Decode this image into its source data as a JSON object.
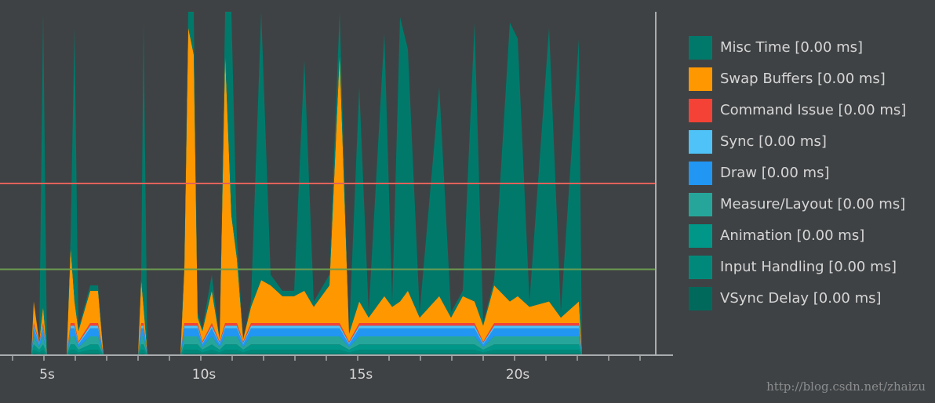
{
  "chart_data": {
    "type": "stacked_area",
    "watermark": "http://blog.csdn.net/zhaizu",
    "xlim": [
      3.6,
      25.05
    ],
    "ylim": [
      0,
      64
    ],
    "xticks": [
      {
        "value": 4,
        "label": null
      },
      {
        "value": 5,
        "label": "5s"
      },
      {
        "value": 6,
        "label": null
      },
      {
        "value": 7,
        "label": null
      },
      {
        "value": 8,
        "label": null
      },
      {
        "value": 9,
        "label": null
      },
      {
        "value": 10,
        "label": "10s"
      },
      {
        "value": 11,
        "label": null
      },
      {
        "value": 12,
        "label": null
      },
      {
        "value": 13,
        "label": null
      },
      {
        "value": 14,
        "label": null
      },
      {
        "value": 15,
        "label": "15s"
      },
      {
        "value": 16,
        "label": null
      },
      {
        "value": 17,
        "label": null
      },
      {
        "value": 18,
        "label": null
      },
      {
        "value": 19,
        "label": null
      },
      {
        "value": 20,
        "label": "20s"
      },
      {
        "value": 21,
        "label": null
      },
      {
        "value": 22,
        "label": null
      },
      {
        "value": 23,
        "label": null
      },
      {
        "value": 24,
        "label": null
      }
    ],
    "thresholds": [
      {
        "value": 32,
        "color": "#e0625b"
      },
      {
        "value": 16,
        "color": "#6b9b50"
      }
    ],
    "x": [
      4.6,
      4.675,
      4.85,
      4.975,
      5.1,
      5.725,
      5.85,
      5.975,
      6.1,
      6.475,
      6.725,
      6.9,
      8.0,
      8.1,
      8.175,
      8.3,
      9.35,
      9.475,
      9.6,
      9.775,
      9.9,
      10.05,
      10.35,
      10.6,
      10.775,
      10.975,
      11.15,
      11.35,
      11.6,
      11.925,
      12.225,
      12.6,
      12.975,
      13.3,
      13.6,
      14.1,
      14.425,
      14.725,
      15.05,
      15.35,
      15.85,
      16.1,
      16.35,
      16.6,
      16.975,
      17.6,
      17.975,
      18.35,
      18.725,
      19.0,
      19.35,
      19.85,
      20.1,
      20.475,
      21.1,
      21.475,
      22.05,
      22.15
    ],
    "series": [
      {
        "name": "Misc Time [0.00 ms]",
        "color": "#00796b",
        "values": [
          0,
          0,
          0,
          55,
          0,
          0,
          2,
          51,
          0.5,
          1,
          1,
          0,
          0,
          1,
          53,
          0,
          0,
          2,
          3,
          8,
          1,
          0.5,
          3,
          0,
          8,
          38,
          4,
          0,
          1,
          50,
          2,
          1,
          1,
          43,
          1,
          2,
          8,
          0,
          40,
          1,
          49,
          1,
          53,
          45,
          1,
          39,
          1,
          1,
          52,
          0.5,
          1,
          52,
          48,
          1,
          51,
          1,
          49,
          0
        ]
      },
      {
        "name": "Swap Buffers [0.00 ms]",
        "color": "#ff9800",
        "values": [
          0,
          4,
          0,
          3,
          0,
          0,
          14,
          4,
          2,
          6,
          6,
          0,
          0,
          8,
          3,
          0,
          0,
          10,
          55,
          50,
          1,
          2,
          6,
          0.5,
          50,
          20,
          12,
          0.5,
          3,
          8,
          7,
          5,
          5,
          6,
          3,
          7,
          50,
          1.5,
          4,
          1,
          5,
          3,
          4,
          6,
          1,
          5,
          1,
          5,
          4,
          3,
          7,
          4,
          5,
          3,
          4,
          1,
          4,
          0
        ]
      },
      {
        "name": "Command Issue [0.00 ms]",
        "color": "#f44336",
        "values": [
          0,
          0.5,
          0.2,
          0.5,
          0,
          0,
          0.5,
          0.5,
          0.2,
          0.5,
          0.5,
          0,
          0,
          0.5,
          0.5,
          0,
          0,
          0.5,
          0.5,
          0.5,
          0.5,
          0.2,
          0.5,
          0.2,
          0.5,
          0.5,
          0.5,
          0.2,
          0.5,
          0.5,
          0.5,
          0.5,
          0.5,
          0.5,
          0.5,
          0.5,
          0.5,
          0.2,
          0.5,
          0.5,
          0.5,
          0.5,
          0.5,
          0.5,
          0.5,
          0.5,
          0.5,
          0.5,
          0.5,
          0.2,
          0.5,
          0.5,
          0.5,
          0.5,
          0.5,
          0.5,
          0.5,
          0
        ]
      },
      {
        "name": "Sync [0.00 ms]",
        "color": "#4fc3f7",
        "values": [
          0,
          0.5,
          0.3,
          0.5,
          0,
          0,
          0.5,
          0.5,
          0.3,
          0.5,
          0.5,
          0,
          0,
          0.5,
          0.5,
          0,
          0,
          0.5,
          0.5,
          0.5,
          0.5,
          0.3,
          0.5,
          0.3,
          0.5,
          0.5,
          0.5,
          0.3,
          0.5,
          0.5,
          0.5,
          0.5,
          0.5,
          0.5,
          0.5,
          0.5,
          0.5,
          0.3,
          0.5,
          0.5,
          0.5,
          0.5,
          0.5,
          0.5,
          0.5,
          0.5,
          0.5,
          0.5,
          0.5,
          0.3,
          0.5,
          0.5,
          0.5,
          0.5,
          0.5,
          0.5,
          0.5,
          0
        ]
      },
      {
        "name": "Draw [0.00 ms]",
        "color": "#2196f3",
        "values": [
          0,
          1.5,
          0.5,
          1.5,
          0,
          0,
          1.5,
          1.5,
          0.5,
          1.5,
          1.5,
          0,
          0,
          1.5,
          1.5,
          0,
          0,
          1.5,
          1.5,
          1.5,
          1.5,
          0.5,
          1.5,
          0.5,
          1.5,
          1.5,
          1.5,
          0.5,
          1.5,
          1.5,
          1.5,
          1.5,
          1.5,
          1.5,
          1.5,
          1.5,
          1.5,
          0.5,
          1.5,
          1.5,
          1.5,
          1.5,
          1.5,
          1.5,
          1.5,
          1.5,
          1.5,
          1.5,
          1.5,
          0.5,
          1.5,
          1.5,
          1.5,
          1.5,
          1.5,
          1.5,
          1.5,
          0
        ]
      },
      {
        "name": "Measure/Layout [0.00 ms]",
        "color": "#26a69a",
        "values": [
          0,
          1.5,
          0.5,
          1.5,
          0,
          0,
          1.5,
          1.5,
          0.5,
          1.5,
          1.5,
          0,
          0,
          1.5,
          1.5,
          0,
          0,
          1.5,
          1.5,
          1.5,
          1.5,
          0.5,
          1.5,
          0.5,
          1.5,
          1.5,
          1.5,
          0.5,
          1.5,
          1.5,
          1.5,
          1.5,
          1.5,
          1.5,
          1.5,
          1.5,
          1.5,
          0.5,
          1.5,
          1.5,
          1.5,
          1.5,
          1.5,
          1.5,
          1.5,
          1.5,
          1.5,
          1.5,
          1.5,
          0.5,
          1.5,
          1.5,
          1.5,
          1.5,
          1.5,
          1.5,
          1.5,
          0
        ]
      },
      {
        "name": "Animation [0.00 ms]",
        "color": "#009688",
        "values": [
          0,
          1,
          0.5,
          1,
          0,
          0,
          1,
          1,
          0.5,
          1,
          1,
          0,
          0,
          1,
          1,
          0,
          0,
          1,
          1,
          1,
          1,
          0.5,
          1,
          0.5,
          1,
          1,
          1,
          0.5,
          1,
          1,
          1,
          1,
          1,
          1,
          1,
          1,
          1,
          0.5,
          1,
          1,
          1,
          1,
          1,
          1,
          1,
          1,
          1,
          1,
          1,
          0.5,
          1,
          1,
          1,
          1,
          1,
          1,
          1,
          0
        ]
      },
      {
        "name": "Input Handling [0.00 ms]",
        "color": "#00897b",
        "values": [
          0,
          0.7,
          0.3,
          0.7,
          0,
          0,
          0.7,
          0.7,
          0.3,
          0.7,
          0.7,
          0,
          0,
          0.7,
          0.7,
          0,
          0,
          0.7,
          0.7,
          0.7,
          0.7,
          0.3,
          0.7,
          0.3,
          0.7,
          0.7,
          0.7,
          0.3,
          0.7,
          0.7,
          0.7,
          0.7,
          0.7,
          0.7,
          0.7,
          0.7,
          0.7,
          0.3,
          0.7,
          0.7,
          0.7,
          0.7,
          0.7,
          0.7,
          0.7,
          0.7,
          0.7,
          0.7,
          0.7,
          0.3,
          0.7,
          0.7,
          0.7,
          0.7,
          0.7,
          0.7,
          0.7,
          0
        ]
      },
      {
        "name": "VSync Delay [0.00 ms]",
        "color": "#00695c",
        "values": [
          0,
          0.3,
          0.2,
          0.3,
          0,
          0,
          0.3,
          0.3,
          0.2,
          0.3,
          0.3,
          0,
          0,
          0.3,
          0.3,
          0,
          0,
          0.3,
          0.3,
          0.3,
          0.3,
          0.2,
          0.3,
          0.2,
          0.3,
          0.3,
          0.3,
          0.2,
          0.3,
          0.3,
          0.3,
          0.3,
          0.3,
          0.3,
          0.3,
          0.3,
          0.3,
          0.2,
          0.3,
          0.3,
          0.3,
          0.3,
          0.3,
          0.3,
          0.3,
          0.3,
          0.3,
          0.3,
          0.3,
          0.2,
          0.3,
          0.3,
          0.3,
          0.3,
          0.3,
          0.3,
          0.3,
          0
        ]
      }
    ]
  }
}
